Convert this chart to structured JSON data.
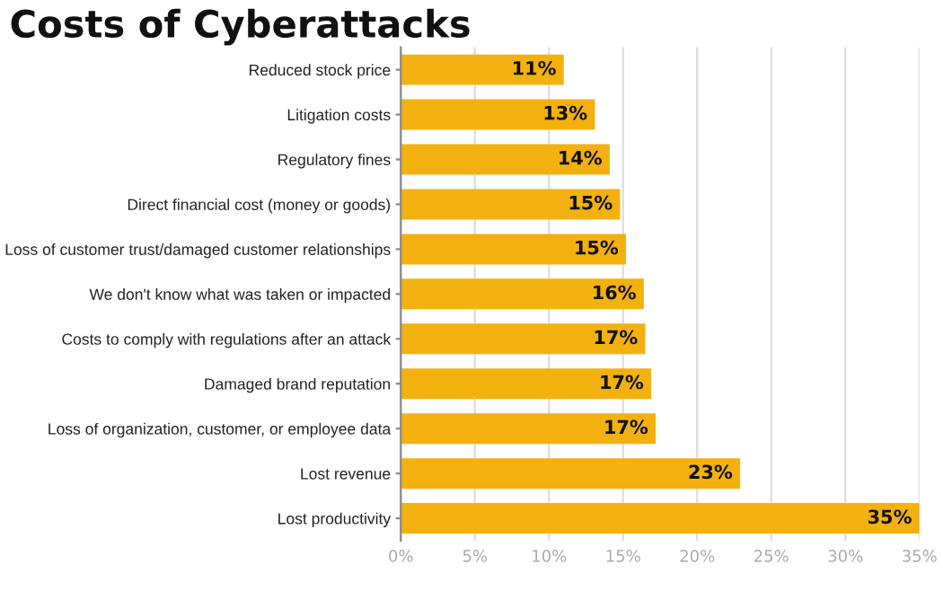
{
  "chart_data": {
    "type": "bar",
    "orientation": "horizontal",
    "title": "Costs of Cyberattacks",
    "categories": [
      "Reduced stock price",
      "Litigation costs",
      "Regulatory fines",
      "Direct financial cost (money or goods)",
      "Loss of customer trust/damaged customer relationships",
      "We don't know what was taken or impacted",
      "Costs to comply with regulations after an attack",
      "Damaged brand reputation",
      "Loss of organization, customer, or employee data",
      "Lost revenue",
      "Lost productivity"
    ],
    "values": [
      11.0,
      13.1,
      14.1,
      14.8,
      15.2,
      16.4,
      16.5,
      16.9,
      17.2,
      22.9,
      35.0
    ],
    "value_labels": [
      "11%",
      "13%",
      "14%",
      "15%",
      "15%",
      "16%",
      "17%",
      "17%",
      "17%",
      "23%",
      "35%"
    ],
    "color": "#f2b10e",
    "xlim": [
      0,
      35
    ],
    "xticks": [
      {
        "value": 0,
        "label": "0%"
      },
      {
        "value": 5,
        "label": "5%"
      },
      {
        "value": 10,
        "label": "10%"
      },
      {
        "value": 15,
        "label": "15%"
      },
      {
        "value": 20,
        "label": "20%"
      },
      {
        "value": 25,
        "label": "25%"
      },
      {
        "value": 30,
        "label": "30%"
      },
      {
        "value": 35,
        "label": "35%"
      }
    ],
    "grid": "x",
    "legend": false
  }
}
